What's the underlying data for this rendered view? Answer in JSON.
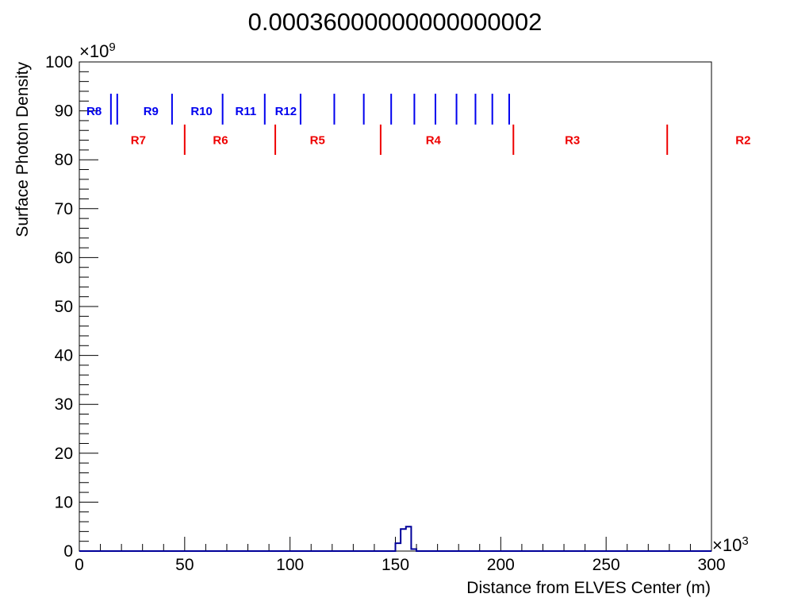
{
  "chart_data": {
    "type": "histogram",
    "title": "0.00036000000000000002",
    "xlabel": "Distance from ELVES Center (m)",
    "ylabel": "Surface Photon Density",
    "x_multiplier_base": "×10",
    "x_multiplier_exp": "3",
    "y_multiplier_base": "×10",
    "y_multiplier_exp": "9",
    "xlim": [
      0,
      300
    ],
    "ylim": [
      0,
      100
    ],
    "x_ticks": [
      0,
      50,
      100,
      150,
      200,
      250,
      300
    ],
    "y_ticks": [
      0,
      10,
      20,
      30,
      40,
      50,
      60,
      70,
      80,
      90,
      100
    ],
    "x_tick_labels": [
      "0",
      "50",
      "100",
      "150",
      "200",
      "250",
      "300"
    ],
    "y_tick_labels": [
      "0",
      "10",
      "20",
      "30",
      "40",
      "50",
      "60",
      "70",
      "80",
      "90",
      "100"
    ],
    "histogram_color": "#000099",
    "histogram": {
      "bin_edges": [
        150,
        152.5,
        155,
        157.5,
        160,
        162.5
      ],
      "values": [
        1.6,
        4.5,
        5.0,
        0.4,
        0
      ]
    },
    "blue_markers": {
      "color": "#0000ee",
      "positions": [
        15,
        18,
        44,
        68,
        88,
        105,
        121,
        135,
        148,
        159,
        169,
        179,
        188,
        196,
        204
      ],
      "labels": [
        {
          "text": "R8",
          "x": 7
        },
        {
          "text": "R9",
          "x": 34
        },
        {
          "text": "R10",
          "x": 58
        },
        {
          "text": "R11",
          "x": 79
        },
        {
          "text": "R12",
          "x": 98
        }
      ]
    },
    "red_markers": {
      "color": "#ee0000",
      "positions": [
        50,
        93,
        143,
        206,
        279
      ],
      "labels": [
        {
          "text": "R7",
          "x": 28
        },
        {
          "text": "R6",
          "x": 67
        },
        {
          "text": "R5",
          "x": 113
        },
        {
          "text": "R4",
          "x": 168
        },
        {
          "text": "R3",
          "x": 234
        },
        {
          "text": "R2",
          "x": 315
        }
      ]
    }
  }
}
